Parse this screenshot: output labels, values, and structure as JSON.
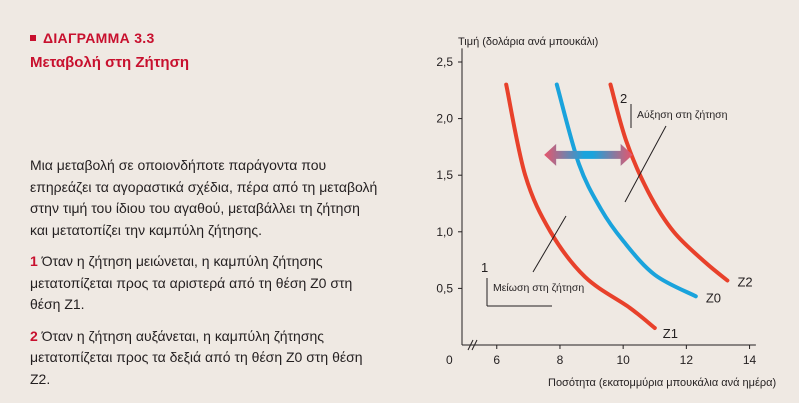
{
  "figure": {
    "label": "ΔΙΑΓΡΑΜΜΑ 3.3",
    "title": "Μεταβολή στη Ζήτηση"
  },
  "text": {
    "intro": "Μια μεταβολή σε οποιονδήποτε παράγοντα που επηρεάζει τα αγοραστικά σχέδια, πέρα από τη μεταβολή στην τιμή του ίδιου του αγαθού, μεταβάλλει τη ζήτηση και μετατοπίζει την καμπύλη ζήτησης.",
    "points": [
      {
        "num": "1",
        "text": "Όταν η ζήτηση μειώνεται, η καμπύλη ζήτησης μετατοπίζεται προς τα αριστερά από τη θέση Ζ0 στη θέση Ζ1."
      },
      {
        "num": "2",
        "text": "Όταν η ζήτηση αυξάνεται, η καμπύλη ζήτησης μετατοπίζεται προς τα δεξιά από τη θέση Ζ0 στη θέση Ζ2."
      }
    ]
  },
  "chart_data": {
    "type": "line",
    "ylabel": "Τιμή (δολάρια ανά μπουκάλι)",
    "xlabel": "Ποσότητα (εκατομμύρια μπουκάλια ανά ημέρα)",
    "x_origin_label": "0",
    "xlim": [
      4.9,
      14.2
    ],
    "ylim": [
      0,
      2.62
    ],
    "x_ticks": [
      6,
      8,
      10,
      12,
      14
    ],
    "y_ticks": [
      0.5,
      1.0,
      1.5,
      2.0,
      2.5
    ],
    "x_tick_labels": [
      "6",
      "8",
      "10",
      "12",
      "14"
    ],
    "y_tick_labels": [
      "0,5",
      "1,0",
      "1,5",
      "2,0",
      "2,5"
    ],
    "axis_break": true,
    "series": [
      {
        "name": "Ζ1",
        "color": "#e8412b",
        "points": [
          [
            6.3,
            2.3
          ],
          [
            6.9,
            1.5
          ],
          [
            7.7,
            1.0
          ],
          [
            8.8,
            0.6
          ],
          [
            10.2,
            0.33
          ],
          [
            11.0,
            0.15
          ]
        ]
      },
      {
        "name": "Ζ0",
        "color": "#1aa3dc",
        "points": [
          [
            7.9,
            2.3
          ],
          [
            8.6,
            1.6
          ],
          [
            9.3,
            1.2
          ],
          [
            10.0,
            0.92
          ],
          [
            11.0,
            0.62
          ],
          [
            12.3,
            0.43
          ]
        ]
      },
      {
        "name": "Ζ2",
        "color": "#e8412b",
        "points": [
          [
            9.6,
            2.3
          ],
          [
            10.1,
            1.8
          ],
          [
            10.8,
            1.35
          ],
          [
            11.6,
            1.0
          ],
          [
            12.6,
            0.73
          ],
          [
            13.3,
            0.57
          ]
        ]
      }
    ],
    "shift_arrow": {
      "x_from": 7.5,
      "x_to": 10.3,
      "y": 1.0,
      "colors": [
        "#e8556b",
        "#1aa3dc",
        "#e8556b"
      ]
    },
    "annotations": [
      {
        "num": "2",
        "text": "Αύξηση στη ζήτηση"
      },
      {
        "num": "1",
        "text": "Μείωση στη ζήτηση"
      }
    ]
  }
}
